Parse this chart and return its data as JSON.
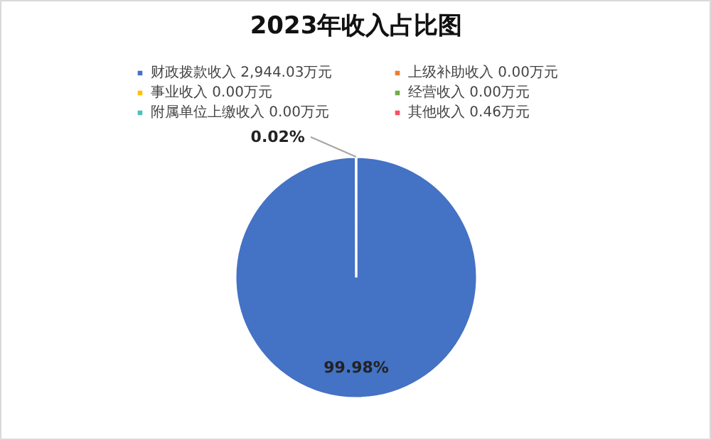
{
  "chart_data": {
    "type": "pie",
    "title": "2023年收入占比图",
    "categories": [
      "财政拨款收入 2,944.03万元",
      "上级补助收入 0.00万元",
      "事业收入 0.00万元",
      "经营收入 0.00万元",
      "附属单位上缴收入 0.00万元",
      "其他收入 0.46万元"
    ],
    "values": [
      99.98,
      0,
      0,
      0,
      0,
      0.02
    ],
    "colors": [
      "#4472c4",
      "#ed7d31",
      "#ffc000",
      "#70ad47",
      "#4bc0c0",
      "#ff4d5e"
    ],
    "value_labels": [
      "99.98%",
      null,
      null,
      null,
      null,
      "0.02%"
    ],
    "legend": "top"
  }
}
